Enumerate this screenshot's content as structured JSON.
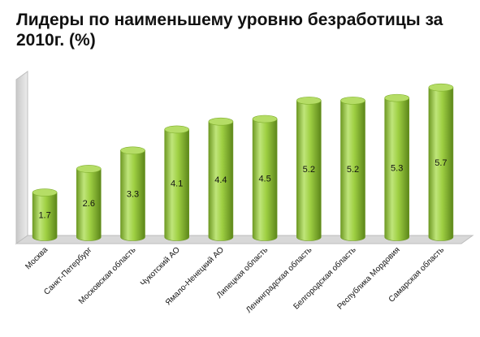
{
  "chart_data": {
    "type": "bar",
    "style": "3d-cylinder",
    "title": "Лидеры по наименьшему уровню безработицы за 2010г. (%)",
    "categories": [
      "Москва",
      "Санкт-Петербург",
      "Московская область",
      "Чукотский АО",
      "Ямало-Ненецкий АО",
      "Липецкая область",
      "Ленинградская область",
      "Белгородская область",
      "Республика Мордовия",
      "Самарская область"
    ],
    "values": [
      1.7,
      2.6,
      3.3,
      4.1,
      4.4,
      4.5,
      5.2,
      5.2,
      5.3,
      5.7
    ],
    "data_labels": [
      "1.7",
      "2.6",
      "3.3",
      "4.1",
      "4.4",
      "4.5",
      "5.2",
      "5.2",
      "5.3",
      "5.7"
    ],
    "ylim": [
      0,
      6
    ],
    "grid": false,
    "legend": "none",
    "colors": {
      "bar_light": "#d4ef9a",
      "bar_mid": "#98c93c",
      "bar_dark": "#5f8a1c",
      "bar_top": "#b5dd66",
      "wall": "#ebebeb",
      "floor": "#d6d6d6"
    }
  }
}
